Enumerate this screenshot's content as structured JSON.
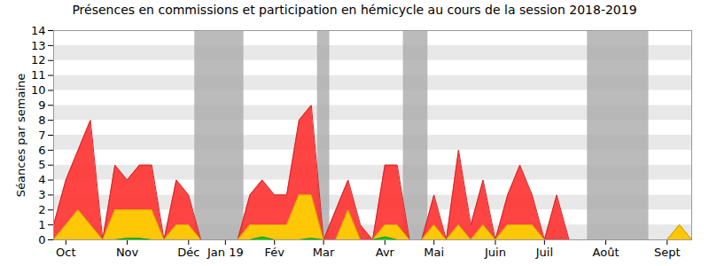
{
  "chart_data": {
    "type": "area",
    "title": "Présences en commissions et participation en hémicycle au cours de la session 2018-2019",
    "y_label": "Séances par semaine",
    "categories": [
      null,
      "Oct",
      null,
      null,
      null,
      null,
      "Nov",
      null,
      null,
      null,
      null,
      "Déc",
      null,
      null,
      "Jan 19",
      null,
      null,
      null,
      "Fév",
      null,
      null,
      null,
      "Mar",
      null,
      null,
      null,
      null,
      "Avr",
      null,
      null,
      null,
      "Mai",
      null,
      null,
      null,
      null,
      "Juin",
      null,
      null,
      null,
      "Juil",
      null,
      null,
      null,
      null,
      "Août",
      null,
      null,
      null,
      null,
      "Sept",
      null,
      null
    ],
    "series": [
      {
        "color": "#ff3030",
        "values": [
          1,
          4,
          6,
          8,
          0,
          5,
          4,
          5,
          5,
          0,
          4,
          3,
          0,
          0,
          0,
          0,
          3,
          4,
          3,
          3,
          8,
          9,
          0,
          2,
          4,
          1,
          0,
          5,
          5,
          0,
          0,
          3,
          0,
          6,
          1,
          4,
          0,
          3,
          5,
          3,
          0,
          3,
          0,
          0,
          0,
          0,
          0,
          0,
          0,
          0,
          0,
          1,
          0
        ]
      },
      {
        "color": "#ffd700",
        "values": [
          0,
          1,
          2,
          1,
          0,
          2,
          2,
          2,
          2,
          0,
          1,
          1,
          0,
          0,
          0,
          0,
          1,
          1,
          1,
          1,
          3,
          3,
          0,
          0,
          2,
          0,
          0,
          1,
          1,
          0,
          0,
          1,
          0,
          1,
          0,
          1,
          0,
          1,
          1,
          1,
          0,
          0,
          0,
          0,
          0,
          0,
          0,
          0,
          0,
          0,
          0,
          1,
          0
        ]
      },
      {
        "color": "#00cc00",
        "values": [
          0,
          0,
          0,
          0,
          0,
          0,
          0.1,
          0.1,
          0,
          0,
          0,
          0,
          0,
          0,
          0,
          0,
          0,
          0.2,
          0,
          0,
          0,
          0.1,
          0,
          0,
          0,
          0,
          0,
          0.2,
          0,
          0,
          0,
          0,
          0,
          0,
          0,
          0,
          0,
          0,
          0,
          0,
          0,
          0,
          0,
          0,
          0,
          0,
          0,
          0,
          0,
          0,
          0,
          0,
          0
        ]
      }
    ],
    "shaded_ranges": [
      [
        11.5,
        15.5
      ],
      [
        21.5,
        22.5
      ],
      [
        28.5,
        30.5
      ],
      [
        43.5,
        48.5
      ]
    ],
    "ylim": [
      0,
      14
    ],
    "yticks": [
      0,
      1,
      2,
      3,
      4,
      5,
      6,
      7,
      8,
      9,
      10,
      11,
      12,
      13,
      14
    ],
    "stacked": false,
    "grid": true
  }
}
